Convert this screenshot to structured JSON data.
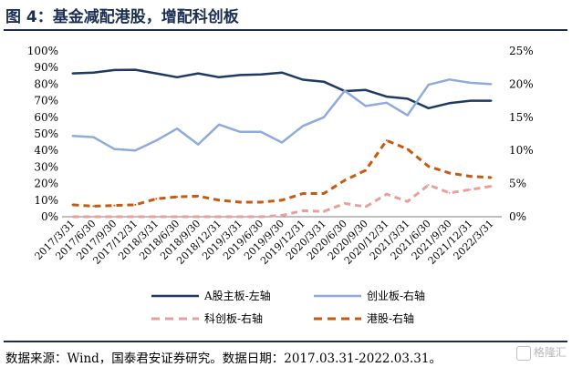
{
  "header": {
    "title": "图 4：基金减配港股，增配科创板"
  },
  "footer": {
    "source": "数据来源：Wind，国泰君安证券研究。数据日期：2017.03.31-2022.03.31。",
    "watermark": "格隆汇"
  },
  "chart_data": {
    "type": "line",
    "x": [
      "2017/3/31",
      "2017/6/30",
      "2017/9/30",
      "2017/12/31",
      "2018/3/31",
      "2018/6/30",
      "2018/9/30",
      "2018/12/31",
      "2019/3/31",
      "2019/6/30",
      "2019/9/30",
      "2019/12/31",
      "2020/3/31",
      "2020/6/30",
      "2020/9/30",
      "2020/12/31",
      "2021/3/31",
      "2021/6/30",
      "2021/9/30",
      "2021/12/31",
      "2022/3/31"
    ],
    "left_axis": {
      "ylim": [
        0,
        100
      ],
      "ticks": [
        "0%",
        "10%",
        "20%",
        "30%",
        "40%",
        "50%",
        "60%",
        "70%",
        "80%",
        "90%",
        "100%"
      ]
    },
    "right_axis": {
      "ylim": [
        0,
        25
      ],
      "ticks": [
        "0%",
        "5%",
        "10%",
        "15%",
        "20%",
        "25%"
      ]
    },
    "legend_position": "bottom",
    "series": [
      {
        "name": "A股主板-左轴",
        "axis": "left",
        "color": "#1f3864",
        "style": "solid",
        "values": [
          86.5,
          87,
          88.5,
          88.7,
          86.5,
          84.2,
          86.5,
          84.2,
          85.5,
          85.8,
          87,
          82.7,
          81.5,
          75.8,
          76.5,
          72.5,
          71.2,
          65.5,
          68.5,
          70,
          70
        ]
      },
      {
        "name": "创业板-右轴",
        "axis": "right",
        "color": "#8faadc",
        "style": "solid",
        "values": [
          12.2,
          12,
          10.2,
          10,
          11.5,
          13.3,
          10.9,
          13.9,
          12.8,
          12.8,
          11.2,
          13.7,
          15,
          19,
          16.7,
          17.2,
          15.3,
          19.9,
          20.7,
          20.2,
          20
        ]
      },
      {
        "name": "科创板-右轴",
        "axis": "right",
        "color": "#e8a09a",
        "style": "dashed",
        "values": [
          0,
          0,
          0,
          0,
          0,
          0,
          0,
          0,
          0,
          0,
          0.2,
          0.9,
          0.8,
          2,
          1.5,
          3.4,
          2.3,
          4.8,
          3.6,
          4.1,
          4.6
        ]
      },
      {
        "name": "港股-右轴",
        "axis": "right",
        "color": "#c55a11",
        "style": "dashed",
        "values": [
          1.8,
          1.6,
          1.7,
          1.8,
          2.7,
          3,
          3.1,
          2.5,
          2.2,
          2.2,
          2.5,
          3.5,
          3.5,
          5.5,
          7,
          11.5,
          10.2,
          7.6,
          6.6,
          6.1,
          5.9
        ]
      }
    ]
  }
}
